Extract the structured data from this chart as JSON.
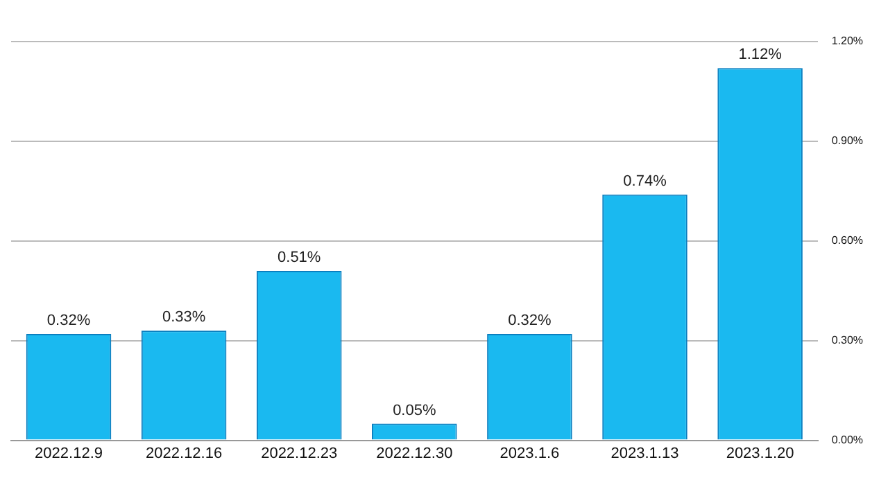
{
  "chart_data": {
    "type": "bar",
    "categories": [
      "2022.12.9",
      "2022.12.16",
      "2022.12.23",
      "2022.12.30",
      "2023.1.6",
      "2023.1.13",
      "2023.1.20"
    ],
    "values": [
      0.32,
      0.33,
      0.51,
      0.05,
      0.32,
      0.74,
      1.12
    ],
    "value_labels": [
      "0.32%",
      "0.33%",
      "0.51%",
      "0.05%",
      "0.32%",
      "0.74%",
      "1.12%"
    ],
    "color": "#1ab9f0",
    "ylim": [
      0,
      1.2
    ],
    "yticks": [
      {
        "value": 0,
        "label": "0.00%"
      },
      {
        "value": 0.3,
        "label": "0.30%"
      },
      {
        "value": 0.6,
        "label": "0.60%"
      },
      {
        "value": 0.9,
        "label": "0.90%"
      },
      {
        "value": 1.2,
        "label": "1.20%"
      }
    ],
    "grid": "y"
  }
}
